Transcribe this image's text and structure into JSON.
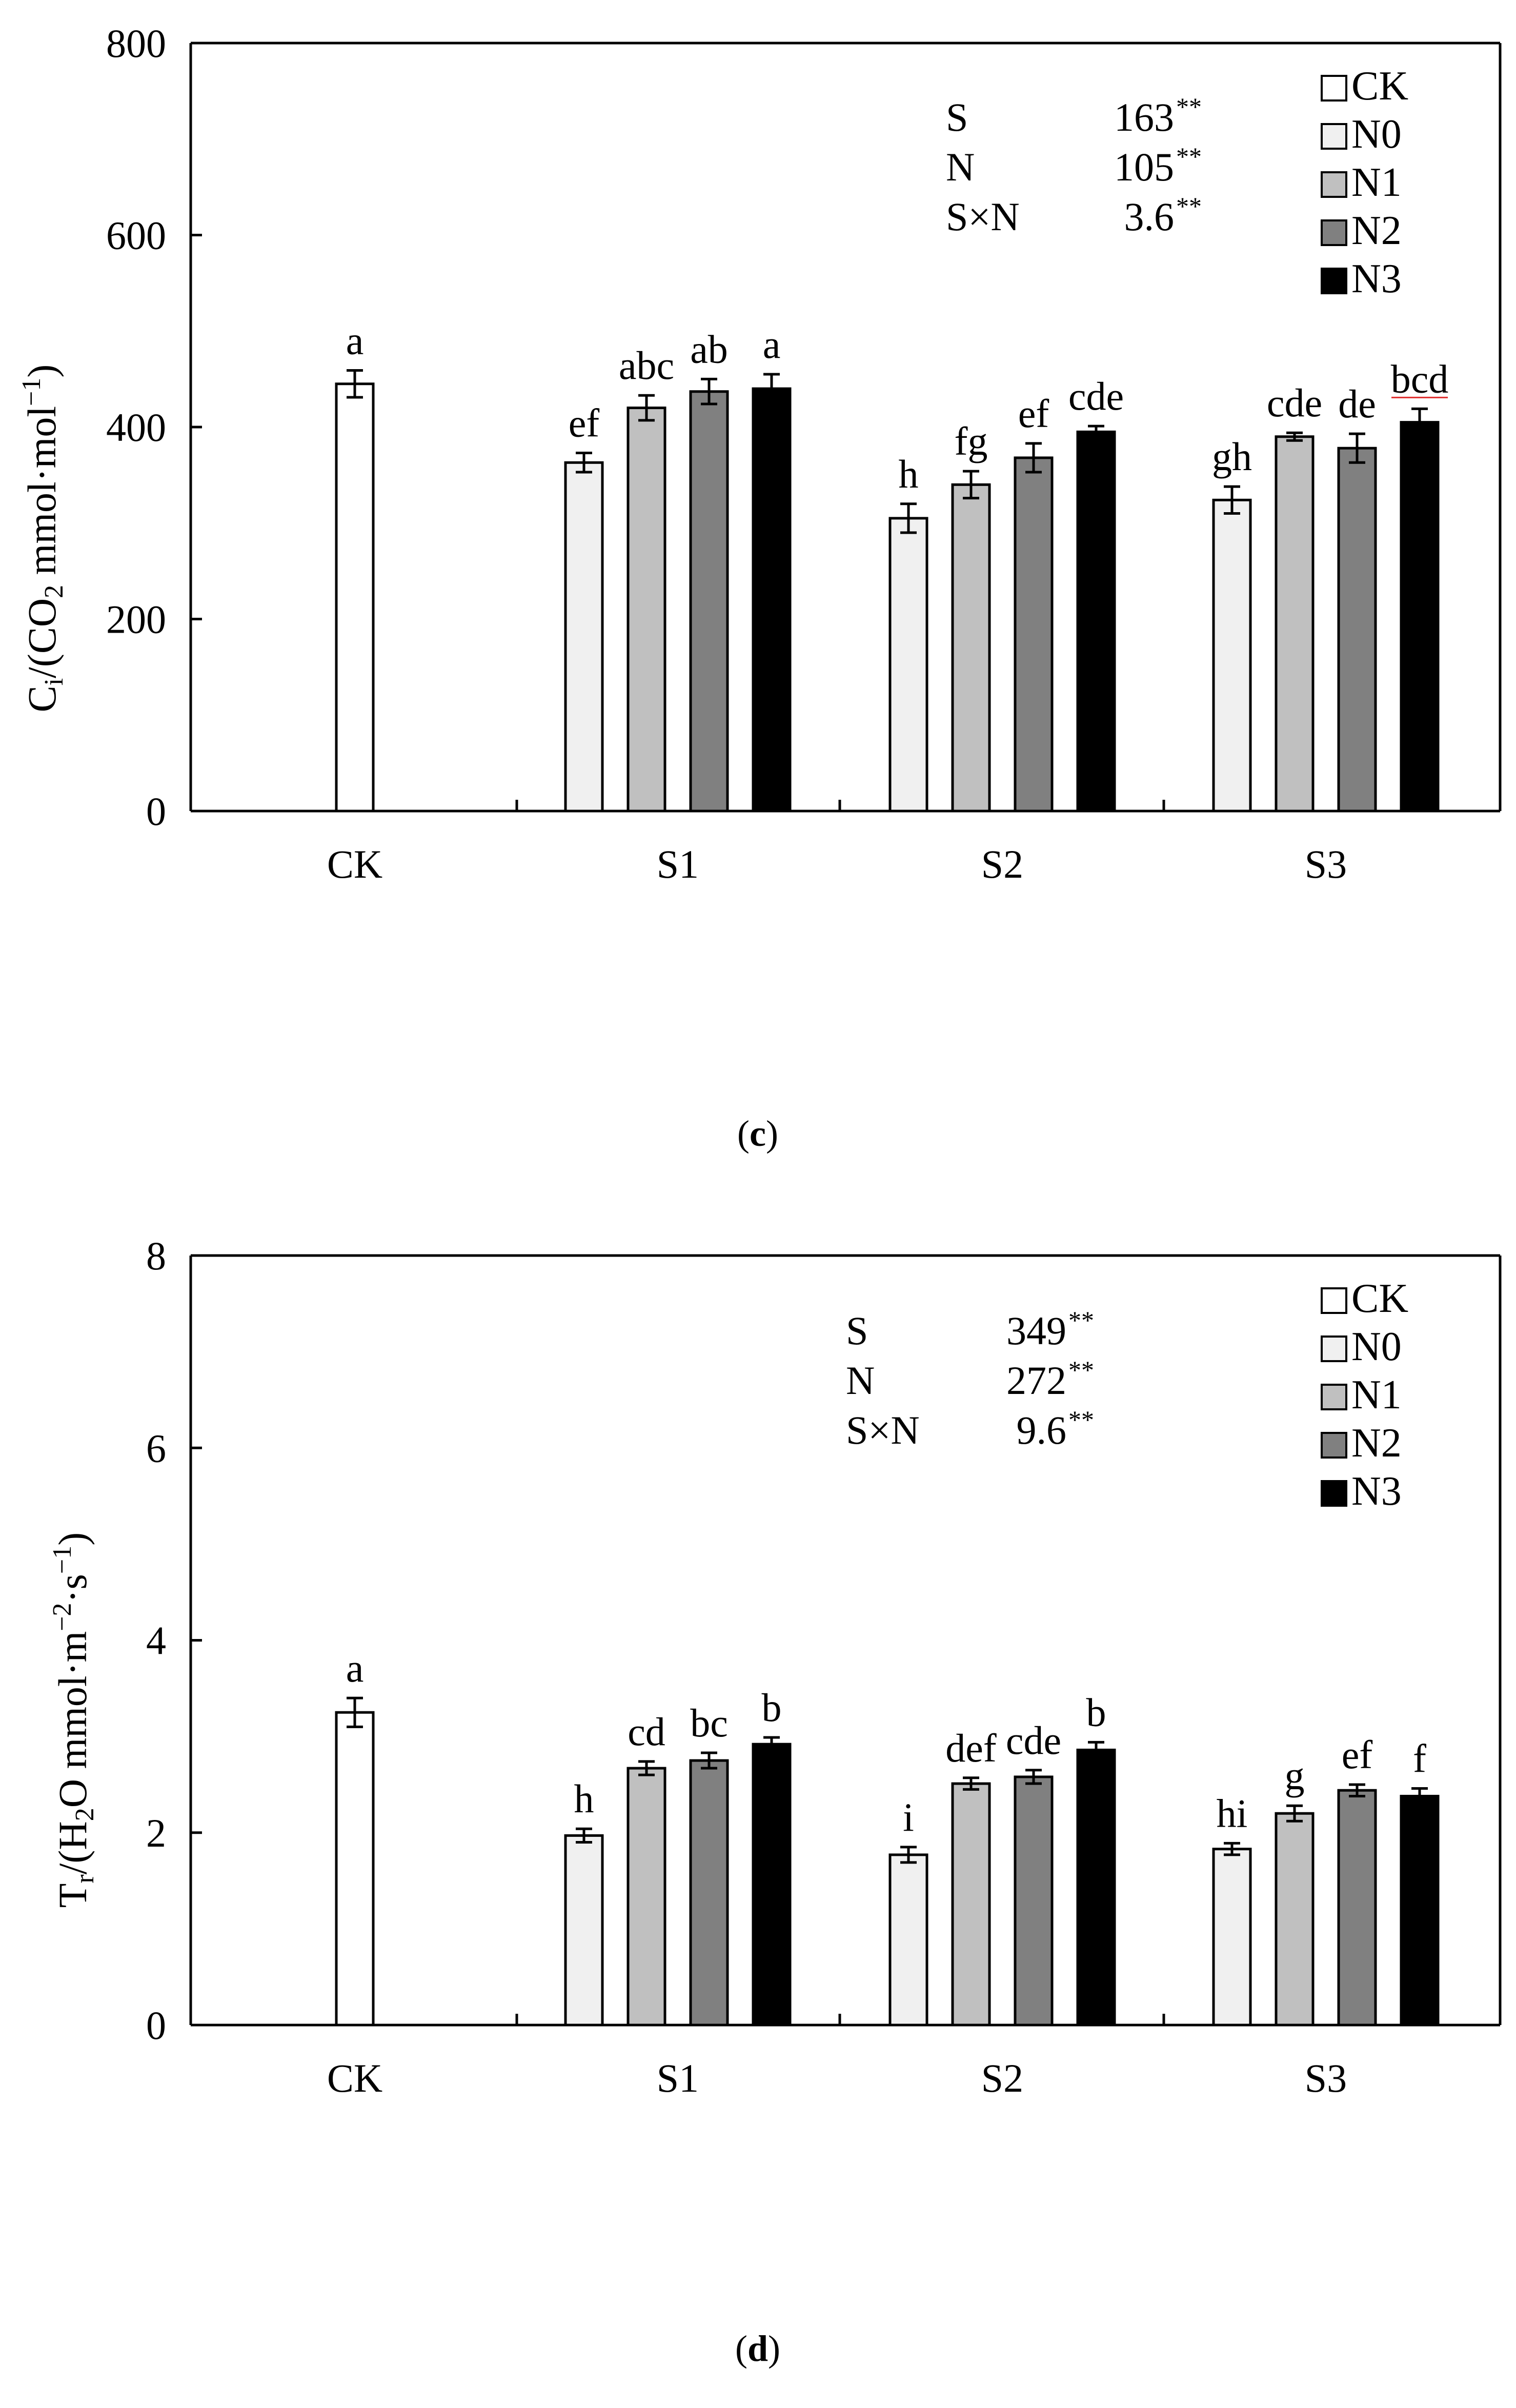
{
  "colors": {
    "CK": "#ffffff",
    "N0": "#f0f0f0",
    "N1": "#c0c0c0",
    "N2": "#808080",
    "N3": "#000000",
    "axis": "#000000",
    "underline": "#e03030"
  },
  "chart_data": [
    {
      "id": "c",
      "type": "bar",
      "caption_letter": "c",
      "ylabel": {
        "main": "C",
        "sub": "i",
        "rest1": "/(CO",
        "sub2": "2",
        "rest2": " mmol·mol",
        "sup": "−1",
        "close": ")"
      },
      "ylim": [
        0,
        800
      ],
      "yticks": [
        0,
        200,
        400,
        600,
        800
      ],
      "categories": [
        "CK",
        "S1",
        "S2",
        "S3"
      ],
      "series_names": [
        "CK",
        "N0",
        "N1",
        "N2",
        "N3"
      ],
      "bars": [
        {
          "category": "CK",
          "series": "CK",
          "value": 445,
          "err": 14,
          "letter": "a"
        },
        {
          "category": "S1",
          "series": "N0",
          "value": 363,
          "err": 10,
          "letter": "ef"
        },
        {
          "category": "S1",
          "series": "N1",
          "value": 420,
          "err": 13,
          "letter": "abc"
        },
        {
          "category": "S1",
          "series": "N2",
          "value": 437,
          "err": 13,
          "letter": "ab"
        },
        {
          "category": "S1",
          "series": "N3",
          "value": 440,
          "err": 15,
          "letter": "a"
        },
        {
          "category": "S2",
          "series": "N0",
          "value": 305,
          "err": 15,
          "letter": "h"
        },
        {
          "category": "S2",
          "series": "N1",
          "value": 340,
          "err": 14,
          "letter": "fg"
        },
        {
          "category": "S2",
          "series": "N2",
          "value": 368,
          "err": 15,
          "letter": "ef"
        },
        {
          "category": "S2",
          "series": "N3",
          "value": 395,
          "err": 6,
          "letter": "cde"
        },
        {
          "category": "S3",
          "series": "N0",
          "value": 324,
          "err": 14,
          "letter": "gh"
        },
        {
          "category": "S3",
          "series": "N1",
          "value": 390,
          "err": 4,
          "letter": "cde"
        },
        {
          "category": "S3",
          "series": "N2",
          "value": 378,
          "err": 15,
          "letter": "de"
        },
        {
          "category": "S3",
          "series": "N3",
          "value": 405,
          "err": 14,
          "letter": "bcd"
        }
      ],
      "stats": [
        {
          "label": "S",
          "value": "163",
          "sig": "**"
        },
        {
          "label": "N",
          "value": "105",
          "sig": "**"
        },
        {
          "label": "S×N",
          "value": "3.6",
          "sig": "**"
        }
      ],
      "legend": [
        "CK",
        "N0",
        "N1",
        "N2",
        "N3"
      ]
    },
    {
      "id": "d",
      "type": "bar",
      "caption_letter": "d",
      "ylabel": {
        "main": "T",
        "sub": "r",
        "rest1": "/(H",
        "sub2": "2",
        "rest2": "O mmol·m",
        "sup": "−2",
        "rest3": "·s",
        "sup2": "−1",
        "close": ")"
      },
      "ylim": [
        0,
        8
      ],
      "yticks": [
        0,
        2,
        4,
        6,
        8
      ],
      "categories": [
        "CK",
        "S1",
        "S2",
        "S3"
      ],
      "series_names": [
        "CK",
        "N0",
        "N1",
        "N2",
        "N3"
      ],
      "bars": [
        {
          "category": "CK",
          "series": "CK",
          "value": 3.25,
          "err": 0.15,
          "letter": "a"
        },
        {
          "category": "S1",
          "series": "N0",
          "value": 1.97,
          "err": 0.07,
          "letter": "h"
        },
        {
          "category": "S1",
          "series": "N1",
          "value": 2.67,
          "err": 0.07,
          "letter": "cd"
        },
        {
          "category": "S1",
          "series": "N2",
          "value": 2.75,
          "err": 0.08,
          "letter": "bc"
        },
        {
          "category": "S1",
          "series": "N3",
          "value": 2.92,
          "err": 0.07,
          "letter": "b"
        },
        {
          "category": "S2",
          "series": "N0",
          "value": 1.77,
          "err": 0.08,
          "letter": "i"
        },
        {
          "category": "S2",
          "series": "N1",
          "value": 2.51,
          "err": 0.06,
          "letter": "def"
        },
        {
          "category": "S2",
          "series": "N2",
          "value": 2.58,
          "err": 0.07,
          "letter": "cde"
        },
        {
          "category": "S2",
          "series": "N3",
          "value": 2.86,
          "err": 0.08,
          "letter": "b"
        },
        {
          "category": "S3",
          "series": "N0",
          "value": 1.83,
          "err": 0.06,
          "letter": "hi"
        },
        {
          "category": "S3",
          "series": "N1",
          "value": 2.2,
          "err": 0.08,
          "letter": "g"
        },
        {
          "category": "S3",
          "series": "N2",
          "value": 2.44,
          "err": 0.06,
          "letter": "ef"
        },
        {
          "category": "S3",
          "series": "N3",
          "value": 2.38,
          "err": 0.08,
          "letter": "f"
        }
      ],
      "stats": [
        {
          "label": "S",
          "value": "349",
          "sig": "**"
        },
        {
          "label": "N",
          "value": "272",
          "sig": "**"
        },
        {
          "label": "S×N",
          "value": "9.6",
          "sig": "**"
        }
      ],
      "legend": [
        "CK",
        "N0",
        "N1",
        "N2",
        "N3"
      ]
    }
  ]
}
